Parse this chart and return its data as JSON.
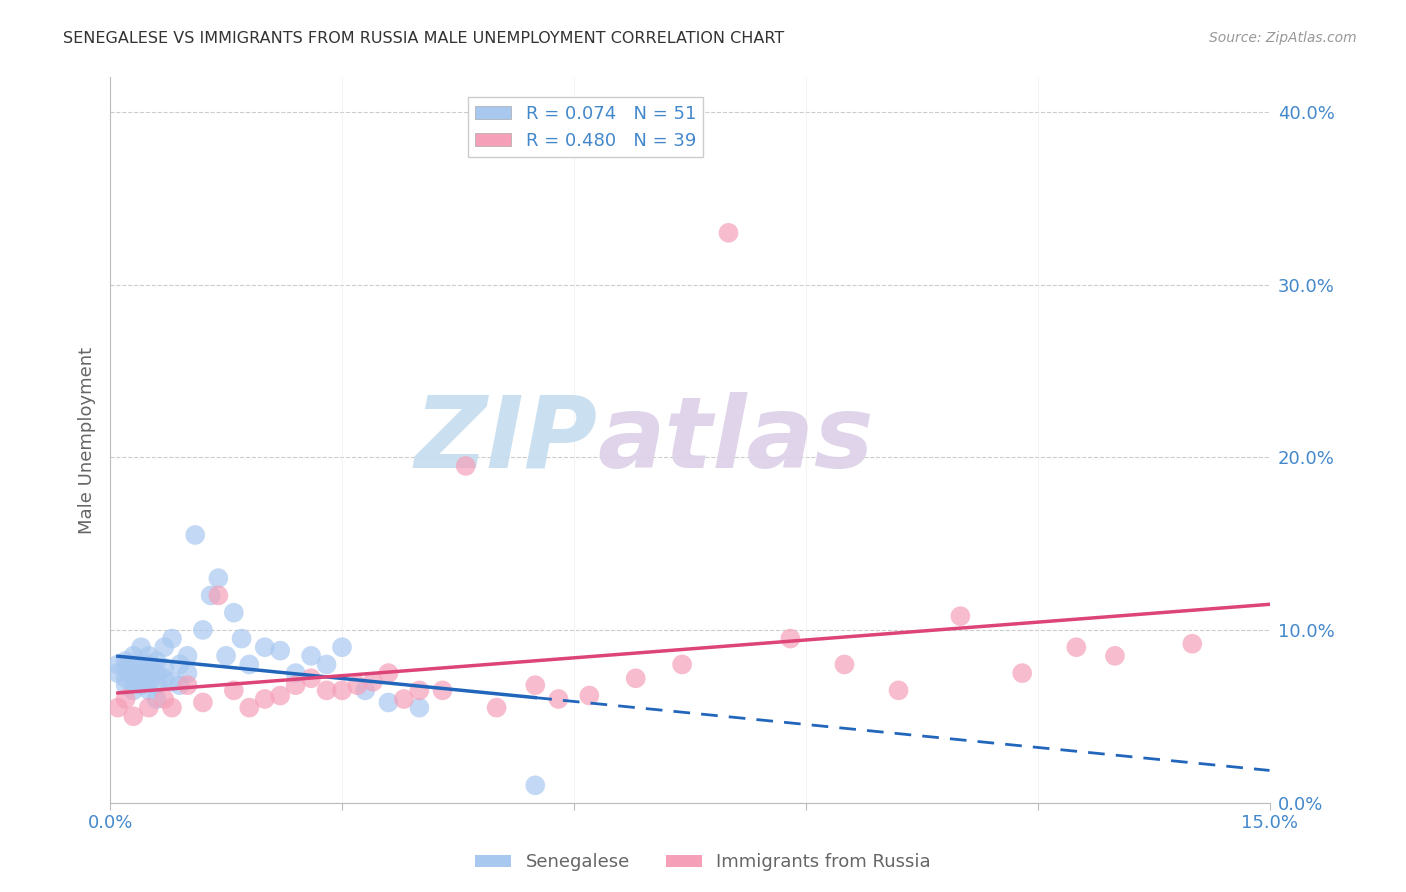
{
  "title": "SENEGALESE VS IMMIGRANTS FROM RUSSIA MALE UNEMPLOYMENT CORRELATION CHART",
  "source": "Source: ZipAtlas.com",
  "ylabel": "Male Unemployment",
  "xlim": [
    0.0,
    0.15
  ],
  "ylim": [
    0.0,
    0.42
  ],
  "ytick_vals": [
    0.0,
    0.1,
    0.2,
    0.3,
    0.4
  ],
  "xtick_vals": [
    0.0,
    0.03,
    0.06,
    0.09,
    0.12,
    0.15
  ],
  "background_color": "#ffffff",
  "watermark_zip": "ZIP",
  "watermark_atlas": "atlas",
  "watermark_color_zip": "#c8dff0",
  "watermark_color_atlas": "#d8c8e8",
  "series1_label": "Senegalese",
  "series1_R": "0.074",
  "series1_N": "51",
  "series1_color": "#a8c8f0",
  "series1_line_color": "#2266bb",
  "series2_label": "Immigrants from Russia",
  "series2_R": "0.480",
  "series2_N": "39",
  "series2_color": "#f5a0b8",
  "series2_line_color": "#dd4477",
  "grid_color": "#cccccc",
  "title_color": "#333333",
  "axis_color": "#4488cc",
  "axis_label_color": "#666666",
  "series1_x": [
    0.001,
    0.001,
    0.002,
    0.002,
    0.002,
    0.002,
    0.003,
    0.003,
    0.003,
    0.003,
    0.003,
    0.004,
    0.004,
    0.004,
    0.004,
    0.005,
    0.005,
    0.005,
    0.005,
    0.005,
    0.006,
    0.006,
    0.006,
    0.006,
    0.007,
    0.007,
    0.007,
    0.008,
    0.008,
    0.009,
    0.009,
    0.01,
    0.01,
    0.011,
    0.012,
    0.013,
    0.014,
    0.015,
    0.016,
    0.017,
    0.018,
    0.02,
    0.022,
    0.024,
    0.026,
    0.028,
    0.03,
    0.033,
    0.036,
    0.04,
    0.055
  ],
  "series1_y": [
    0.075,
    0.08,
    0.068,
    0.072,
    0.078,
    0.082,
    0.07,
    0.075,
    0.08,
    0.085,
    0.065,
    0.072,
    0.078,
    0.068,
    0.09,
    0.075,
    0.08,
    0.07,
    0.085,
    0.065,
    0.068,
    0.075,
    0.082,
    0.06,
    0.072,
    0.078,
    0.09,
    0.07,
    0.095,
    0.068,
    0.08,
    0.085,
    0.075,
    0.155,
    0.1,
    0.12,
    0.13,
    0.085,
    0.11,
    0.095,
    0.08,
    0.09,
    0.088,
    0.075,
    0.085,
    0.08,
    0.09,
    0.065,
    0.058,
    0.055,
    0.01
  ],
  "series2_x": [
    0.001,
    0.002,
    0.003,
    0.005,
    0.007,
    0.008,
    0.01,
    0.012,
    0.014,
    0.016,
    0.018,
    0.02,
    0.022,
    0.024,
    0.026,
    0.028,
    0.03,
    0.032,
    0.034,
    0.036,
    0.038,
    0.04,
    0.043,
    0.046,
    0.05,
    0.055,
    0.058,
    0.062,
    0.068,
    0.074,
    0.08,
    0.088,
    0.095,
    0.102,
    0.11,
    0.118,
    0.125,
    0.13,
    0.14
  ],
  "series2_y": [
    0.055,
    0.06,
    0.05,
    0.055,
    0.06,
    0.055,
    0.068,
    0.058,
    0.12,
    0.065,
    0.055,
    0.06,
    0.062,
    0.068,
    0.072,
    0.065,
    0.065,
    0.068,
    0.07,
    0.075,
    0.06,
    0.065,
    0.065,
    0.195,
    0.055,
    0.068,
    0.06,
    0.062,
    0.072,
    0.08,
    0.33,
    0.095,
    0.08,
    0.065,
    0.108,
    0.075,
    0.09,
    0.085,
    0.092
  ]
}
